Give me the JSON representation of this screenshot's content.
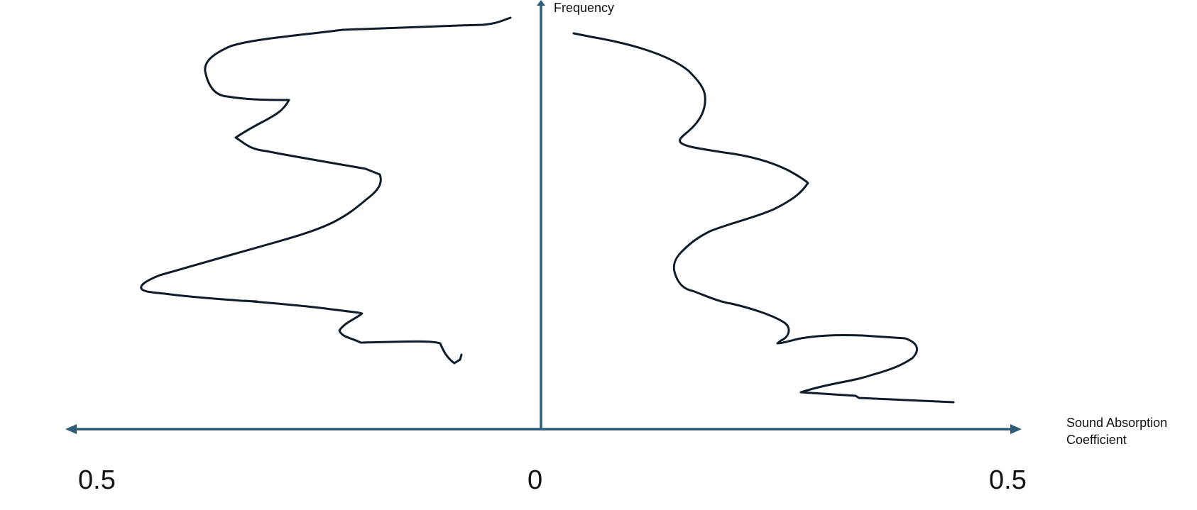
{
  "diagram": {
    "y_axis_label": "Frequency",
    "x_axis_label_line1": "Sound Absorption",
    "x_axis_label_line2": "Coefficient",
    "ticks": {
      "left": "0.5",
      "center": "0",
      "right": "0.5"
    },
    "colors": {
      "axis": "#2d5b78",
      "curve": "#0f1c2a",
      "text": "#111111"
    },
    "curves": [
      "left-absorption-curve",
      "right-absorption-curve"
    ]
  }
}
